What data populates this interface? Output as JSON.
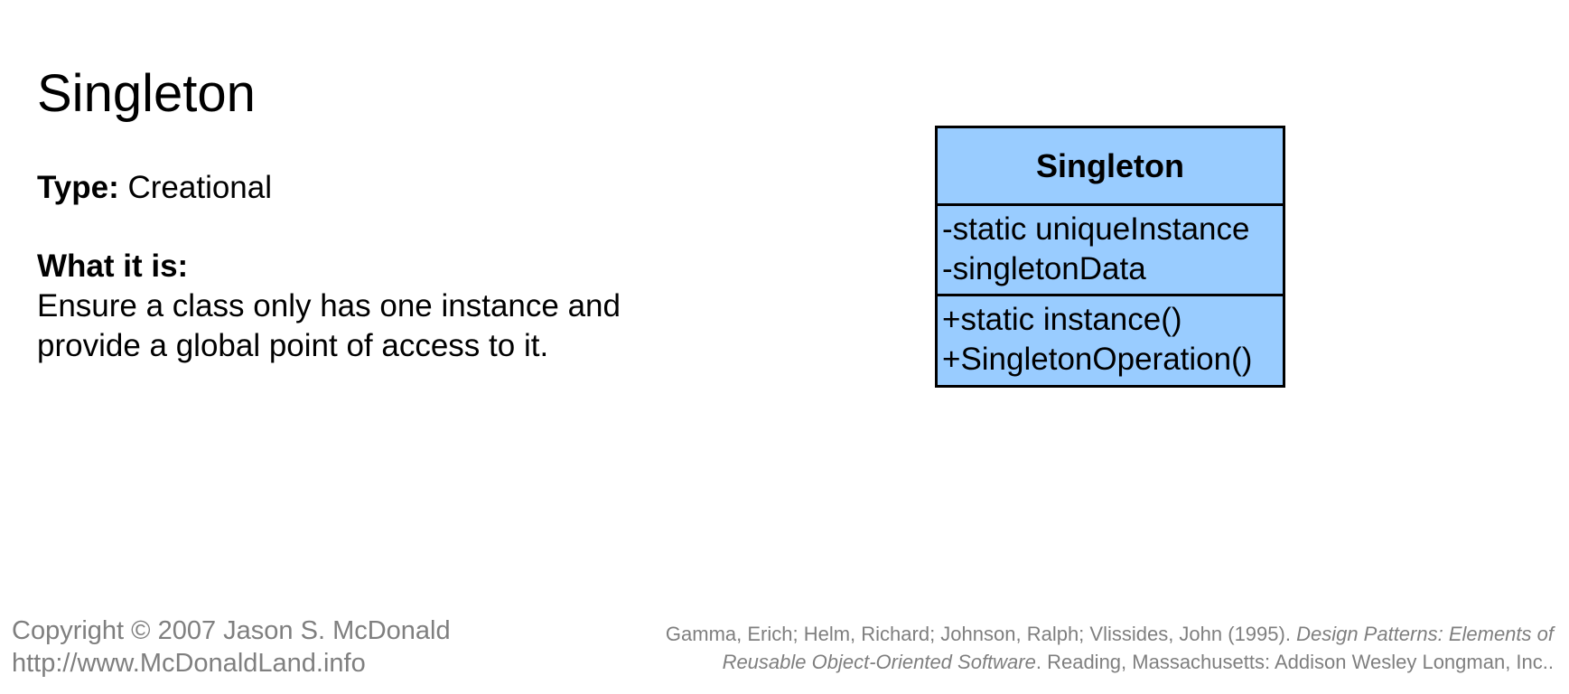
{
  "slide": {
    "title": "Singleton",
    "type_label": "Type:",
    "type_value": "Creational",
    "what_heading": "What it is:",
    "what_text": "Ensure a class only has one instance and provide a global point of access to it."
  },
  "uml": {
    "class_name": "Singleton",
    "fill_color": "#99ccff",
    "border_color": "#000000",
    "attributes": [
      "-static uniqueInstance",
      "-singletonData"
    ],
    "operations": [
      "+static instance()",
      "+SingletonOperation()"
    ]
  },
  "footer": {
    "copyright_line1": "Copyright © 2007 Jason S. McDonald",
    "copyright_line2": "http://www.McDonaldLand.info",
    "citation_authors": "Gamma, Erich; Helm, Richard; Johnson, Ralph; Vlissides, John (1995). ",
    "citation_title_part1": "Design Patterns: Elements of",
    "citation_title_part2": "Reusable Object-Oriented Software",
    "citation_publisher": ". Reading, Massachusetts: Addison Wesley Longman, Inc..",
    "text_color": "#7f7f7f"
  }
}
